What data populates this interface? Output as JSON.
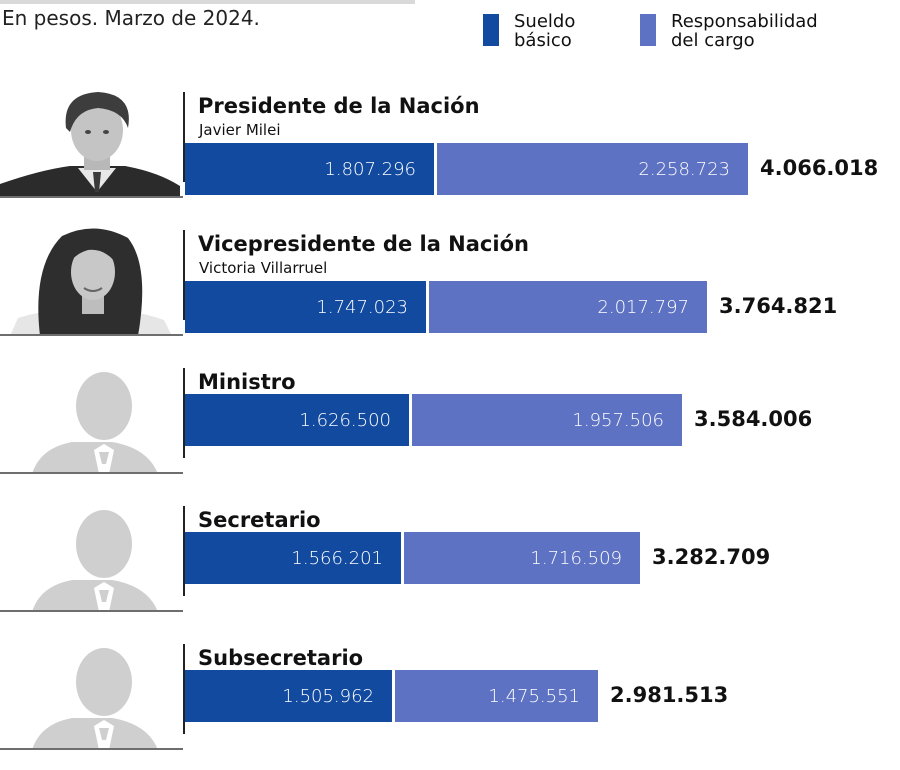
{
  "subtitle": "En pesos. Marzo de 2024.",
  "legend": [
    {
      "label": "Sueldo\nbásico",
      "color": "#124aa0"
    },
    {
      "label": "Responsabilidad\ndel cargo",
      "color": "#5d72c2"
    }
  ],
  "chart_data": {
    "type": "bar",
    "orientation": "horizontal",
    "stacked": true,
    "title": "",
    "subtitle": "En pesos. Marzo de 2024.",
    "categories": [
      "Presidente de la Nación",
      "Vicepresidente de la Nación",
      "Ministro",
      "Secretario",
      "Subsecretario"
    ],
    "names": [
      "Javier Milei",
      "Victoria Villarruel",
      "",
      "",
      ""
    ],
    "series": [
      {
        "name": "Sueldo básico",
        "values": [
          1807296,
          1747023,
          1626500,
          1566201,
          1505962
        ],
        "labels": [
          "1.807.296",
          "1.747.023",
          "1.626.500",
          "1.566.201",
          "1.505.962"
        ]
      },
      {
        "name": "Responsabilidad del cargo",
        "values": [
          2258723,
          2017797,
          1957506,
          1716509,
          1475551
        ],
        "labels": [
          "2.258.723",
          "2.017.797",
          "1.957.506",
          "1.716.509",
          "1.475.551"
        ]
      }
    ],
    "totals": [
      "4.066.018",
      "3.764.821",
      "3.584.006",
      "3.282.709",
      "2.981.513"
    ],
    "legend_position": "top-right",
    "grid": false
  }
}
